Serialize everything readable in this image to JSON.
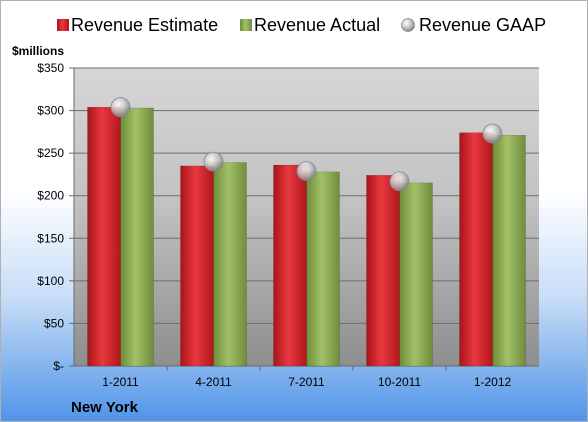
{
  "chart_data": {
    "type": "bar",
    "categories": [
      "1-2011",
      "4-2011",
      "7-2011",
      "10-2011",
      "1-2012"
    ],
    "series": [
      {
        "name": "Revenue Estimate",
        "values": [
          304,
          235,
          236,
          224,
          274
        ],
        "color": "#d9242b",
        "mark": "bar"
      },
      {
        "name": "Revenue Actual",
        "values": [
          303,
          239,
          228,
          215,
          271
        ],
        "color": "#8fae55",
        "mark": "bar"
      },
      {
        "name": "Revenue GAAP",
        "values": [
          304,
          240,
          229,
          217,
          273
        ],
        "color": "#b8b8b8",
        "mark": "circle"
      }
    ],
    "ylabel": "$millions",
    "ylim": [
      0,
      350
    ],
    "yticks": [
      0,
      50,
      100,
      150,
      200,
      250,
      300,
      350
    ],
    "ytick_labels": [
      "$-",
      "$50",
      "$100",
      "$150",
      "$200",
      "$250",
      "$300",
      "$350"
    ],
    "grid": true,
    "legend_position": "top"
  },
  "footer": {
    "location": "New York"
  },
  "colors": {
    "plot_bg_top": "#d6d6d6",
    "plot_bg_bottom": "#9a9a9a",
    "page_bg_bottom": "#4f94e8"
  }
}
